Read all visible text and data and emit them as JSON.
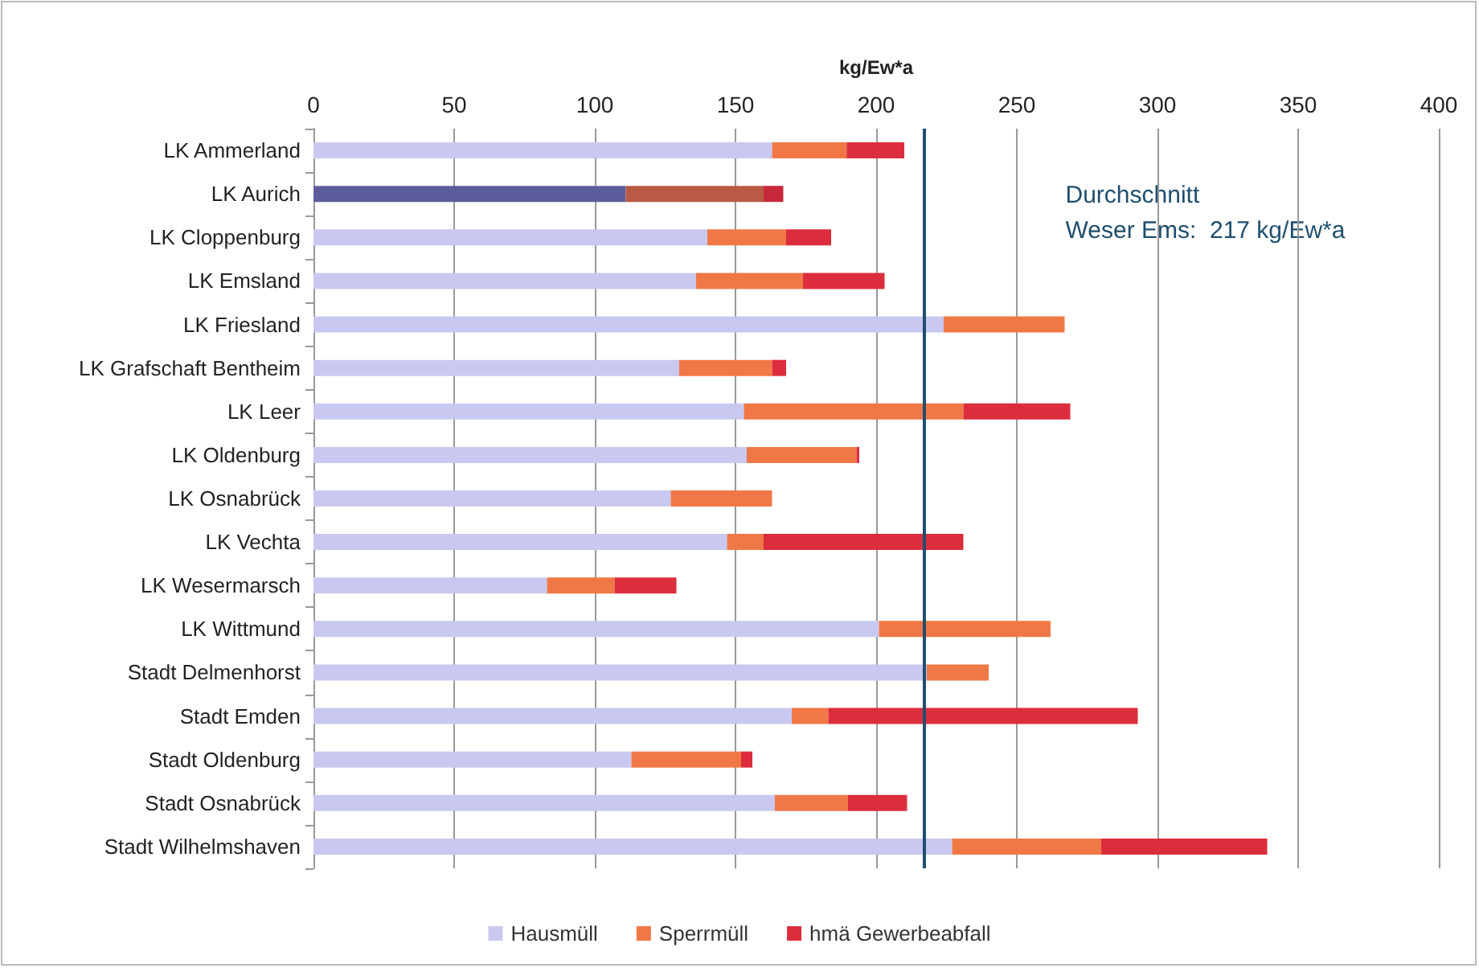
{
  "chart_data": {
    "type": "bar",
    "orientation": "horizontal",
    "stacked": true,
    "xlabel": "kg/Ew*a",
    "categories": [
      "LK Ammerland",
      "LK Aurich",
      "LK Cloppenburg",
      "LK Emsland",
      "LK Friesland",
      "LK Grafschaft Bentheim",
      "LK Leer",
      "LK Oldenburg",
      "LK Osnabrück",
      "LK Vechta",
      "LK Wesermarsch",
      "LK Wittmund",
      "Stadt Delmenhorst",
      "Stadt Emden",
      "Stadt Oldenburg",
      "Stadt Osnabrück",
      "Stadt Wilhelmshaven"
    ],
    "series": [
      {
        "name": "Hausmüll",
        "color": "#c8c8f0",
        "colors": [
          "#c8c8f0",
          "#5c5c9c",
          "#c8c8f0",
          "#c8c8f0",
          "#c8c8f0",
          "#c8c8f0",
          "#c8c8f0",
          "#c8c8f0",
          "#c8c8f0",
          "#c8c8f0",
          "#c8c8f0",
          "#c8c8f0",
          "#c8c8f0",
          "#c8c8f0",
          "#c8c8f0",
          "#c8c8f0",
          "#c8c8f0"
        ],
        "values": [
          163,
          111,
          140,
          136,
          224,
          130,
          153,
          154,
          127,
          147,
          83,
          201,
          218,
          170,
          113,
          164,
          227
        ]
      },
      {
        "name": "Sperrmüll",
        "color": "#f07846",
        "colors": [
          "#f07846",
          "#b95a45",
          "#f07846",
          "#f07846",
          "#f07846",
          "#f07846",
          "#f07846",
          "#f07846",
          "#f07846",
          "#f07846",
          "#f07846",
          "#f07846",
          "#f07846",
          "#f07846",
          "#f07846",
          "#f07846",
          "#f07846"
        ],
        "values": [
          26.5,
          49,
          28,
          38,
          43,
          33,
          78,
          39,
          36,
          13,
          24,
          61,
          22,
          13,
          39,
          26,
          53
        ]
      },
      {
        "name": "hmä Gewerbeabfall",
        "color": "#dc2d3c",
        "colors": [
          "#dc2d3c",
          "#c8283c",
          "#dc2d3c",
          "#dc2d3c",
          "#dc2d3c",
          "#dc2d3c",
          "#dc2d3c",
          "#dc2d3c",
          "#dc2d3c",
          "#dc2d3c",
          "#dc2d3c",
          "#dc2d3c",
          "#dc2d3c",
          "#dc2d3c",
          "#dc2d3c",
          "#dc2d3c",
          "#dc2d3c"
        ],
        "values": [
          20.5,
          7,
          16,
          29,
          0,
          5,
          38,
          1,
          0,
          71,
          22,
          0,
          0,
          110,
          4,
          21,
          59
        ]
      }
    ],
    "xlim": [
      0,
      400
    ],
    "xticks": [
      0,
      50,
      100,
      150,
      200,
      250,
      300,
      350,
      400
    ],
    "grid": "x",
    "legend": "bottom",
    "ref_lines": [
      {
        "axis": "x",
        "value": 217,
        "label": "Durchschnitt\nWeser Ems:  217 kg/Ew*a",
        "color": "#1f4e6e",
        "line_style": "solid"
      }
    ]
  }
}
